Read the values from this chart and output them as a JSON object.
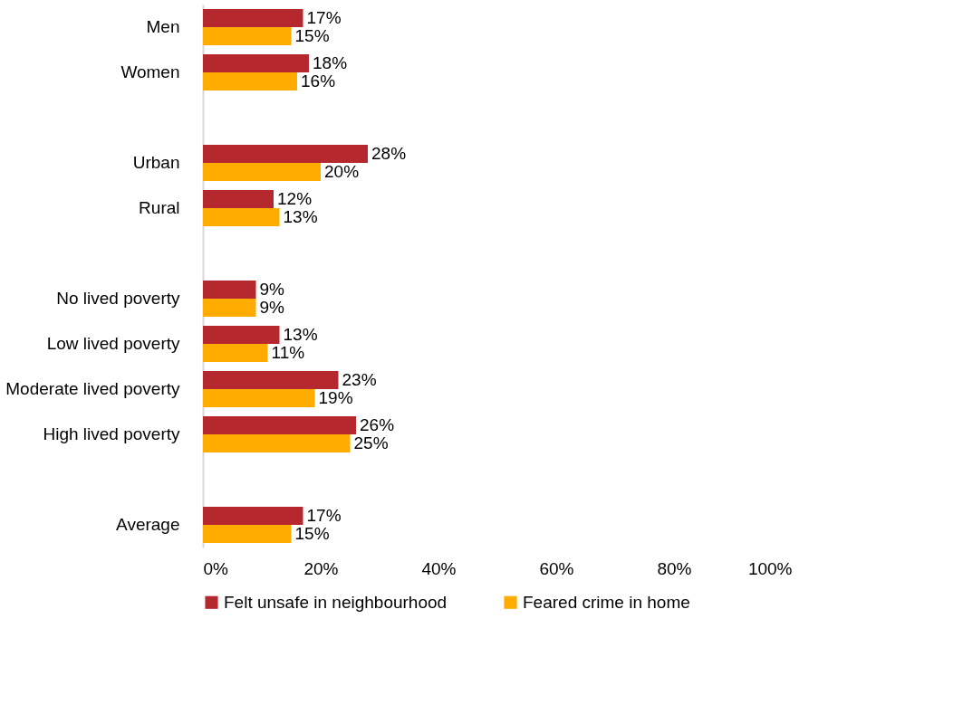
{
  "chart_data": {
    "type": "bar",
    "orientation": "horizontal",
    "categories": [
      "Men",
      "Women",
      null,
      "Urban",
      "Rural",
      null,
      "No lived poverty",
      "Low lived poverty",
      "Moderate lived poverty",
      "High lived poverty",
      null,
      "Average"
    ],
    "series": [
      {
        "name": "Felt unsafe in neighbourhood",
        "color": "#b5282e",
        "values": [
          17,
          18,
          null,
          28,
          12,
          null,
          9,
          13,
          23,
          26,
          null,
          17
        ],
        "value_labels": [
          "17%",
          "18%",
          null,
          "28%",
          "12%",
          null,
          "9%",
          "13%",
          "23%",
          "26%",
          null,
          "17%"
        ]
      },
      {
        "name": "Feared crime in home",
        "color": "#ffab00",
        "values": [
          15,
          16,
          null,
          20,
          13,
          null,
          9,
          11,
          19,
          25,
          null,
          15
        ],
        "value_labels": [
          "15%",
          "16%",
          null,
          "20%",
          "13%",
          null,
          "9%",
          "11%",
          "19%",
          "25%",
          null,
          "15%"
        ]
      }
    ],
    "xlim": [
      0,
      100
    ],
    "xticks": [
      {
        "value": 0,
        "label": "0%"
      },
      {
        "value": 20,
        "label": "20%"
      },
      {
        "value": 40,
        "label": "40%"
      },
      {
        "value": 60,
        "label": "60%"
      },
      {
        "value": 80,
        "label": "80%"
      },
      {
        "value": 100,
        "label": "100%"
      }
    ],
    "grid": false,
    "legend": "bottom"
  }
}
